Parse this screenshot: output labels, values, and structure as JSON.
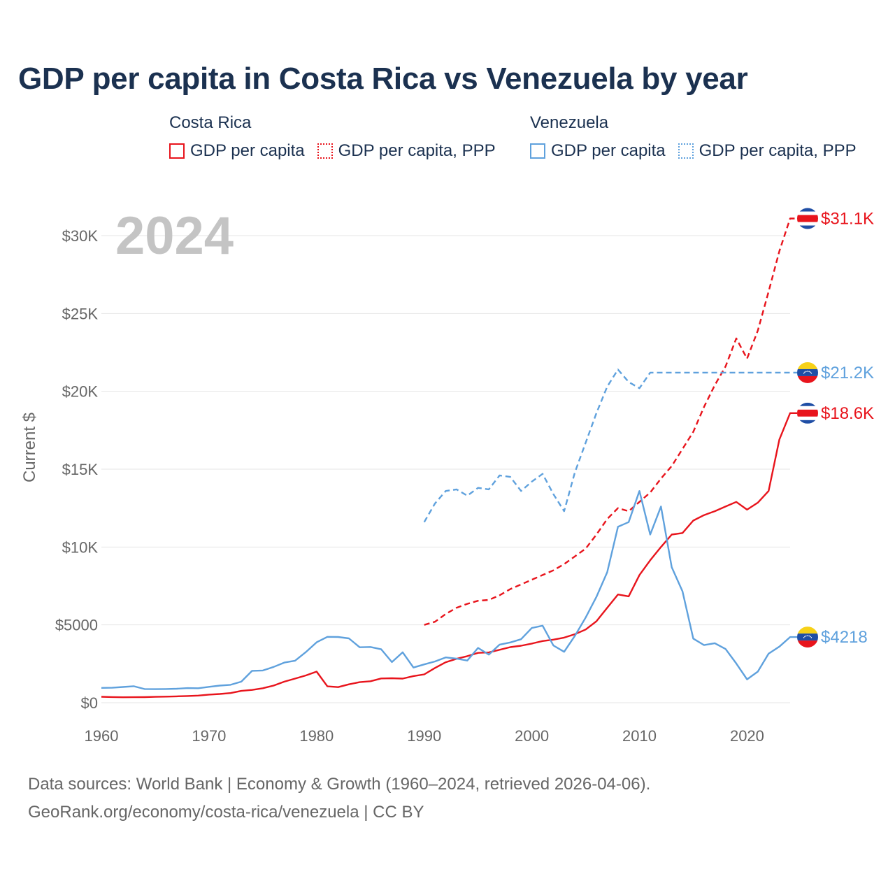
{
  "title": "GDP per capita in Costa Rica vs Venezuela by year",
  "legend": {
    "groups": [
      {
        "name": "Costa Rica",
        "color": "#e8141c",
        "items": [
          {
            "label": "GDP per capita",
            "style": "solid"
          },
          {
            "label": "GDP per capita, PPP",
            "style": "dotted"
          }
        ]
      },
      {
        "name": "Venezuela",
        "color": "#5fa1dd",
        "items": [
          {
            "label": "GDP per capita",
            "style": "solid"
          },
          {
            "label": "GDP per capita, PPP",
            "style": "dotted"
          }
        ]
      }
    ]
  },
  "source": {
    "line1": "Data sources: World Bank | Economy & Growth (1960–2024, retrieved 2026-04-06).",
    "line2": "GeoRank.org/economy/costa-rica/venezuela | CC BY"
  },
  "chart_data": {
    "type": "line",
    "title": "GDP per capita in Costa Rica vs Venezuela by year",
    "year_label": "2024",
    "xlabel": "",
    "ylabel": "Current $",
    "xlim": [
      1960,
      2024
    ],
    "ylim": [
      0,
      31000
    ],
    "xticks": [
      1960,
      1970,
      1980,
      1990,
      2000,
      2010,
      2020
    ],
    "yticks": [
      0,
      5000,
      10000,
      15000,
      20000,
      25000,
      30000
    ],
    "ytick_labels": [
      "$0",
      "$5000",
      "$10K",
      "$15K",
      "$20K",
      "$25K",
      "$30K"
    ],
    "grid": true,
    "series": [
      {
        "name": "Costa Rica GDP per capita",
        "country": "Costa Rica",
        "color": "#e8141c",
        "style": "solid",
        "end_label": "$18.6K",
        "flag": "costa-rica",
        "x": [
          1960,
          1961,
          1962,
          1963,
          1964,
          1965,
          1966,
          1967,
          1968,
          1969,
          1970,
          1971,
          1972,
          1973,
          1974,
          1975,
          1976,
          1977,
          1978,
          1979,
          1980,
          1981,
          1982,
          1983,
          1984,
          1985,
          1986,
          1987,
          1988,
          1989,
          1990,
          1991,
          1992,
          1993,
          1994,
          1995,
          1996,
          1997,
          1998,
          1999,
          2000,
          2001,
          2002,
          2003,
          2004,
          2005,
          2006,
          2007,
          2008,
          2009,
          2010,
          2011,
          2012,
          2013,
          2014,
          2015,
          2016,
          2017,
          2018,
          2019,
          2020,
          2021,
          2022,
          2023,
          2024
        ],
        "values": [
          380,
          365,
          350,
          355,
          360,
          375,
          390,
          410,
          430,
          460,
          520,
          560,
          620,
          760,
          820,
          930,
          1100,
          1350,
          1550,
          1750,
          2000,
          1050,
          1000,
          1180,
          1320,
          1380,
          1560,
          1570,
          1550,
          1710,
          1820,
          2230,
          2600,
          2820,
          2990,
          3200,
          3230,
          3400,
          3570,
          3660,
          3800,
          3960,
          4050,
          4180,
          4400,
          4700,
          5230,
          6100,
          6950,
          6830,
          8200,
          9150,
          10000,
          10800,
          10900,
          11700,
          12050,
          12300,
          12600,
          12900,
          12400,
          12850,
          13600,
          16900,
          18600
        ]
      },
      {
        "name": "Costa Rica GDP per capita, PPP",
        "country": "Costa Rica",
        "color": "#e8141c",
        "style": "dashed",
        "end_label": "$31.1K",
        "flag": "costa-rica",
        "x": [
          1990,
          1991,
          1992,
          1993,
          1994,
          1995,
          1996,
          1997,
          1998,
          1999,
          2000,
          2001,
          2002,
          2003,
          2004,
          2005,
          2006,
          2007,
          2008,
          2009,
          2010,
          2011,
          2012,
          2013,
          2014,
          2015,
          2016,
          2017,
          2018,
          2019,
          2020,
          2021,
          2022,
          2023,
          2024
        ],
        "values": [
          5000,
          5200,
          5700,
          6100,
          6350,
          6550,
          6600,
          6900,
          7300,
          7600,
          7900,
          8200,
          8500,
          8900,
          9400,
          9900,
          10800,
          11800,
          12500,
          12300,
          12900,
          13500,
          14400,
          15200,
          16300,
          17400,
          19000,
          20400,
          21600,
          23400,
          22100,
          23900,
          26400,
          29000,
          31100
        ]
      },
      {
        "name": "Venezuela GDP per capita",
        "country": "Venezuela",
        "color": "#5fa1dd",
        "style": "solid",
        "end_label": "$4218",
        "flag": "venezuela",
        "x": [
          1960,
          1961,
          1962,
          1963,
          1964,
          1965,
          1966,
          1967,
          1968,
          1969,
          1970,
          1971,
          1972,
          1973,
          1974,
          1975,
          1976,
          1977,
          1978,
          1979,
          1980,
          1981,
          1982,
          1983,
          1984,
          1985,
          1986,
          1987,
          1988,
          1989,
          1990,
          1991,
          1992,
          1993,
          1994,
          1995,
          1996,
          1997,
          1998,
          1999,
          2000,
          2001,
          2002,
          2003,
          2004,
          2005,
          2006,
          2007,
          2008,
          2009,
          2010,
          2011,
          2012,
          2013,
          2014,
          2015,
          2016,
          2017,
          2018,
          2019,
          2020,
          2021,
          2022,
          2023,
          2024
        ],
        "values": [
          950,
          960,
          1010,
          1060,
          880,
          870,
          880,
          900,
          940,
          930,
          1020,
          1100,
          1150,
          1350,
          2050,
          2070,
          2300,
          2580,
          2700,
          3250,
          3880,
          4230,
          4220,
          4130,
          3560,
          3580,
          3430,
          2610,
          3240,
          2260,
          2460,
          2650,
          2910,
          2830,
          2710,
          3520,
          3090,
          3730,
          3870,
          4080,
          4800,
          4950,
          3680,
          3270,
          4300,
          5470,
          6800,
          8380,
          11300,
          11600,
          13600,
          10800,
          12600,
          8700,
          7150,
          4120,
          3700,
          3820,
          3450,
          2520,
          1500,
          2000,
          3150,
          3600,
          4218
        ]
      },
      {
        "name": "Venezuela GDP per capita, PPP",
        "country": "Venezuela",
        "color": "#5fa1dd",
        "style": "dashed",
        "end_label": "$21.2K",
        "flag": "venezuela",
        "x": [
          1990,
          1991,
          1992,
          1993,
          1994,
          1995,
          1996,
          1997,
          1998,
          1999,
          2000,
          2001,
          2002,
          2003,
          2004,
          2005,
          2006,
          2007,
          2008,
          2009,
          2010,
          2011,
          2012,
          2013,
          2014,
          2015,
          2016,
          2017,
          2018,
          2019,
          2020,
          2021,
          2022,
          2023,
          2024
        ],
        "values": [
          11600,
          12800,
          13600,
          13700,
          13300,
          13800,
          13700,
          14600,
          14500,
          13600,
          14200,
          14700,
          13400,
          12300,
          14800,
          16700,
          18600,
          20300,
          21400,
          20600,
          20200,
          21200,
          21200,
          21200,
          21200,
          21200,
          21200,
          21200,
          21200,
          21200,
          21200,
          21200,
          21200,
          21200,
          21200
        ]
      }
    ]
  }
}
